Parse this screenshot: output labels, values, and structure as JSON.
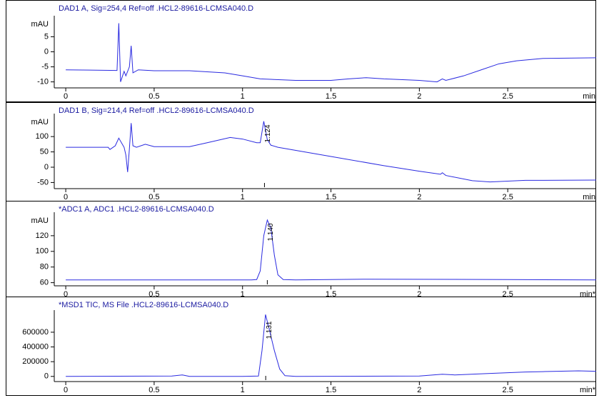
{
  "chart_data": [
    {
      "type": "line",
      "title": "DAD1 A, Sig=254,4 Ref=off .HCL2-89616-LCMSA040.D",
      "ylabel": "mAU",
      "xlabel": "min",
      "xlim": [
        -0.065,
        3.0
      ],
      "xticks": [
        0,
        0.5,
        1,
        1.5,
        2,
        2.5
      ],
      "ylim": [
        -12,
        12
      ],
      "yticks": [
        -10,
        -5,
        0,
        5
      ],
      "color": "#2a2ae0",
      "x": [
        0,
        0.29,
        0.3,
        0.31,
        0.33,
        0.34,
        0.36,
        0.37,
        0.38,
        0.41,
        0.5,
        0.7,
        0.9,
        1.0,
        1.1,
        1.3,
        1.5,
        1.6,
        1.7,
        1.8,
        2.0,
        2.1,
        2.13,
        2.15,
        2.25,
        2.35,
        2.45,
        2.55,
        2.7,
        3.0
      ],
      "values": [
        -6,
        -6.2,
        9.5,
        -10,
        -6.5,
        -8,
        -5,
        2,
        -7,
        -6,
        -6.3,
        -6.3,
        -7,
        -8,
        -9,
        -9.5,
        -9.5,
        -9,
        -8.6,
        -9,
        -9.5,
        -10,
        -9,
        -9.5,
        -8,
        -6,
        -4,
        -3,
        -2.2,
        -2
      ]
    },
    {
      "type": "line",
      "title": "DAD1 B, Sig=214,4 Ref=off .HCL2-89616-LCMSA040.D",
      "ylabel": "mAU",
      "xlabel": "min",
      "xlim": [
        -0.065,
        3.0
      ],
      "xticks": [
        0,
        0.5,
        1,
        1.5,
        2,
        2.5
      ],
      "ylim": [
        -70,
        175
      ],
      "yticks": [
        -50,
        0,
        50,
        100
      ],
      "color": "#2a2ae0",
      "x": [
        0,
        0.24,
        0.25,
        0.28,
        0.3,
        0.32,
        0.33,
        0.34,
        0.35,
        0.36,
        0.37,
        0.38,
        0.4,
        0.45,
        0.5,
        0.7,
        0.8,
        0.93,
        1.0,
        1.08,
        1.1,
        1.12,
        1.14,
        1.16,
        1.2,
        1.5,
        1.8,
        2.0,
        2.12,
        2.13,
        2.15,
        2.3,
        2.4,
        2.6,
        3.0
      ],
      "values": [
        65,
        65,
        58,
        70,
        95,
        75,
        65,
        40,
        -16,
        60,
        144,
        70,
        65,
        75,
        67,
        67,
        80,
        97,
        92,
        80,
        80,
        150,
        90,
        72,
        65,
        35,
        5,
        -13,
        -23,
        -18,
        -27,
        -44,
        -48,
        -43,
        -42
      ],
      "annotations": [
        {
          "x": 1.124,
          "label": "1.124"
        }
      ]
    },
    {
      "type": "line",
      "title": "*ADC1 A, ADC1 .HCL2-89616-LCMSA040.D",
      "ylabel": "mAU",
      "xlabel": "min*",
      "xlim": [
        -0.065,
        3.0
      ],
      "xticks": [
        0,
        0.5,
        1,
        1.5,
        2,
        2.5
      ],
      "ylim": [
        56,
        150
      ],
      "yticks": [
        60,
        80,
        100,
        120
      ],
      "color": "#2a2ae0",
      "x": [
        0,
        1.05,
        1.08,
        1.1,
        1.12,
        1.14,
        1.16,
        1.18,
        1.2,
        1.23,
        1.3,
        1.7,
        2.5,
        3.0
      ],
      "values": [
        63.5,
        63.5,
        64,
        75,
        120,
        140,
        130,
        95,
        70,
        64,
        63.5,
        64.5,
        64,
        63.5
      ],
      "annotations": [
        {
          "x": 1.14,
          "label": "1.140"
        }
      ]
    },
    {
      "type": "line",
      "title": "*MSD1 TIC, MS File .HCL2-89616-LCMSA040.D",
      "xlabel": "min*",
      "xlim": [
        -0.065,
        3.0
      ],
      "xticks": [
        0,
        0.5,
        1,
        1.5,
        2,
        2.5
      ],
      "ylim": [
        -70000,
        900000
      ],
      "yticks": [
        0,
        200000,
        400000,
        600000
      ],
      "color": "#2a2ae0",
      "x": [
        0,
        0.6,
        0.66,
        0.7,
        1.0,
        1.09,
        1.11,
        1.13,
        1.15,
        1.18,
        1.21,
        1.24,
        1.3,
        2.0,
        2.13,
        2.2,
        2.4,
        2.5,
        2.6,
        2.7,
        2.9,
        3.0
      ],
      "values": [
        0,
        5000,
        20000,
        0,
        0,
        5000,
        350000,
        840000,
        650000,
        350000,
        100000,
        10000,
        0,
        5000,
        30000,
        20000,
        40000,
        50000,
        60000,
        65000,
        75000,
        70000
      ],
      "annotations": [
        {
          "x": 1.131,
          "label": "1.131"
        }
      ]
    }
  ]
}
